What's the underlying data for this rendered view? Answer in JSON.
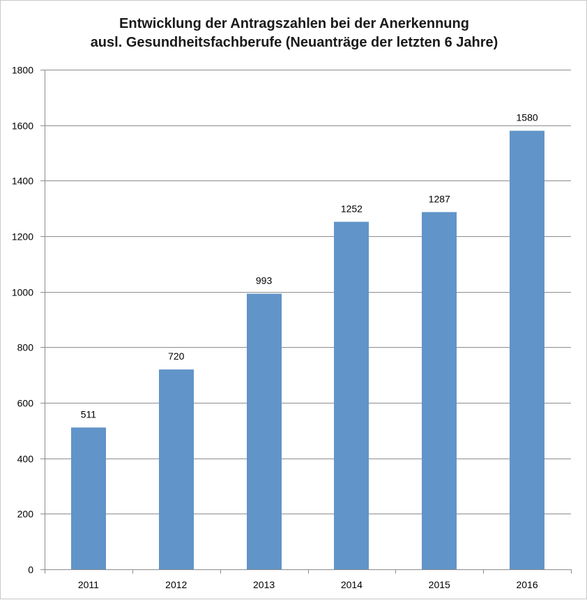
{
  "chart_data": {
    "type": "bar",
    "title_lines": [
      "Entwicklung der Antragszahlen bei der Anerkennung",
      "ausl. Gesundheitsfachberufe (Neuanträge der letzten 6 Jahre)"
    ],
    "categories": [
      "2011",
      "2012",
      "2013",
      "2014",
      "2015",
      "2016"
    ],
    "values": [
      511,
      720,
      993,
      1252,
      1287,
      1580
    ],
    "data_labels": [
      "511",
      "720",
      "993",
      "1252",
      "1287",
      "1580"
    ],
    "ylim": [
      0,
      1800
    ],
    "yticks": [
      0,
      200,
      400,
      600,
      800,
      1000,
      1200,
      1400,
      1600,
      1800
    ],
    "grid": true,
    "bar_color": "#6194c8",
    "grid_color": "#8c8c8c"
  }
}
